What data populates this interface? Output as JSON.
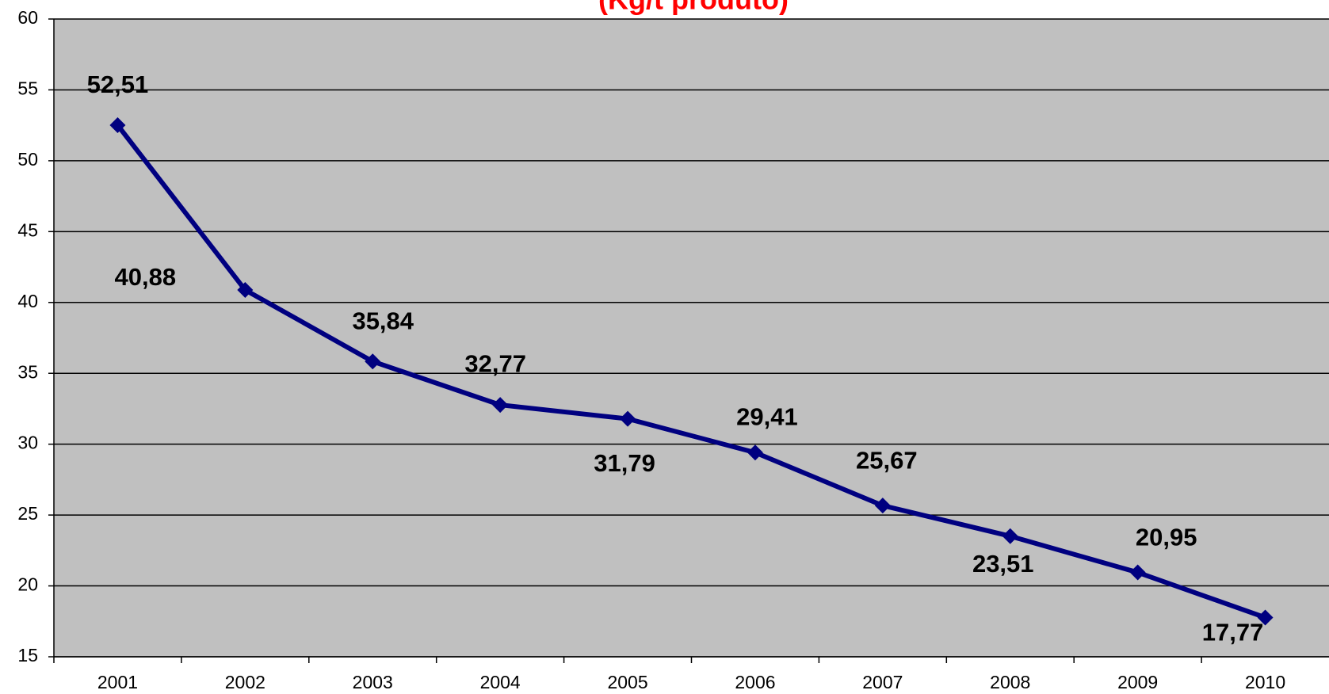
{
  "chart_data": {
    "type": "line",
    "title": "(Kg/t produto)",
    "categories": [
      "2001",
      "2002",
      "2003",
      "2004",
      "2005",
      "2006",
      "2007",
      "2008",
      "2009",
      "2010"
    ],
    "series": [
      {
        "name": "Kg/t produto",
        "color": "#000080",
        "values": [
          52.51,
          40.88,
          35.84,
          32.77,
          31.79,
          29.41,
          25.67,
          23.51,
          20.95,
          17.77
        ],
        "value_labels": [
          "52,51",
          "40,88",
          "35,84",
          "32,77",
          "31,79",
          "29,41",
          "25,67",
          "23,51",
          "20,95",
          "17,77"
        ]
      }
    ],
    "ylim": [
      15,
      60
    ],
    "yticks": [
      15,
      20,
      25,
      30,
      35,
      40,
      45,
      50,
      55,
      60
    ],
    "grid": true,
    "title_color": "#ff0000",
    "plot_background": "#c0c0c0"
  }
}
